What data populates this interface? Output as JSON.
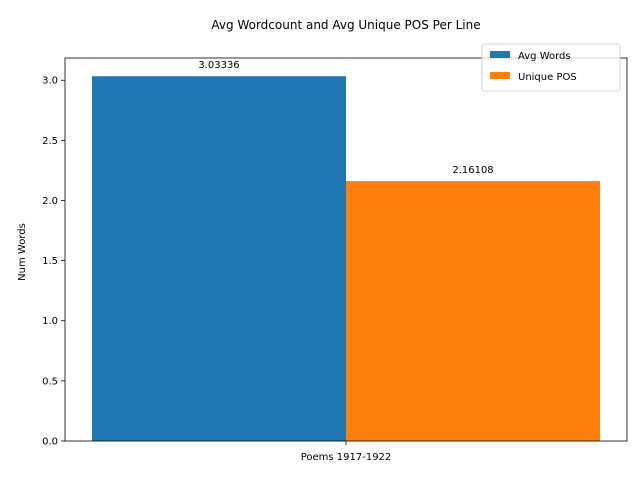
{
  "chart_data": {
    "type": "bar",
    "title": "Avg Wordcount and Avg Unique POS Per Line",
    "xlabel": "",
    "ylabel": "Num Words",
    "categories": [
      "Poems 1917-1922"
    ],
    "series": [
      {
        "name": "Avg Words",
        "values": [
          3.03336
        ],
        "label": "3.03336",
        "color": "#1f77b4"
      },
      {
        "name": "Unique POS",
        "values": [
          2.16108
        ],
        "label": "2.16108",
        "color": "#ff7f0e"
      }
    ],
    "ylim": [
      0,
      3.185
    ],
    "yticks": [
      0.0,
      0.5,
      1.0,
      1.5,
      2.0,
      2.5,
      3.0
    ],
    "ytick_labels": [
      "0.0",
      "0.5",
      "1.0",
      "1.5",
      "2.0",
      "2.5",
      "3.0"
    ],
    "grid": false,
    "legend_position": "top-right"
  }
}
